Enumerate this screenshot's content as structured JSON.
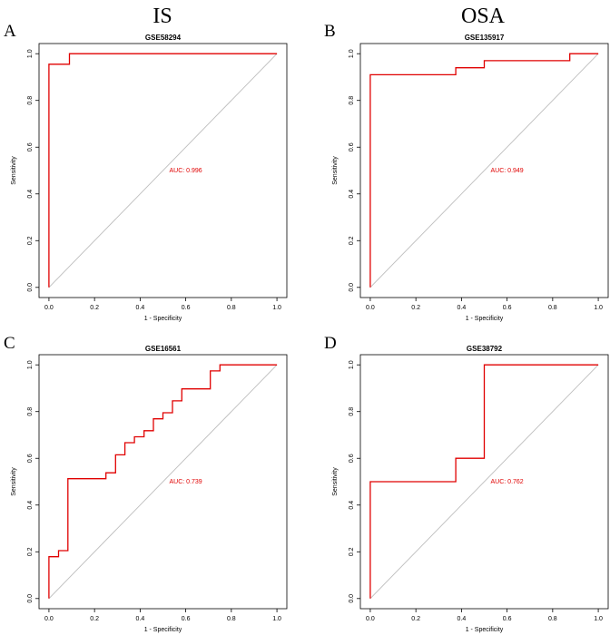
{
  "column_headers": [
    "IS",
    "OSA"
  ],
  "chart_data": [
    {
      "type": "line",
      "panel_label": "A",
      "title": "GSE58294",
      "xlabel": "1 - Specificity",
      "ylabel": "Sensitivity",
      "xlim": [
        0,
        1
      ],
      "ylim": [
        0,
        1
      ],
      "ticks": [
        "0.0",
        "0.2",
        "0.4",
        "0.6",
        "0.8",
        "1.0"
      ],
      "annotation": "AUC: 0.996",
      "colors": {
        "curve": "#e00000",
        "diagonal": "#bdbdbd",
        "axes": "#000000"
      },
      "x": [
        0,
        0,
        0.09,
        0.09,
        1
      ],
      "y": [
        0,
        0.955,
        0.955,
        1,
        1
      ]
    },
    {
      "type": "line",
      "panel_label": "B",
      "title": "GSE135917",
      "xlabel": "1 - Specificity",
      "ylabel": "Sensitivity",
      "xlim": [
        0,
        1
      ],
      "ylim": [
        0,
        1
      ],
      "ticks": [
        "0.0",
        "0.2",
        "0.4",
        "0.6",
        "0.8",
        "1.0"
      ],
      "annotation": "AUC: 0.949",
      "colors": {
        "curve": "#e00000",
        "diagonal": "#bdbdbd",
        "axes": "#000000"
      },
      "x": [
        0,
        0,
        0.375,
        0.375,
        0.5,
        0.5,
        0.875,
        0.875,
        1
      ],
      "y": [
        0,
        0.91,
        0.91,
        0.94,
        0.94,
        0.97,
        0.97,
        1,
        1
      ]
    },
    {
      "type": "line",
      "panel_label": "C",
      "title": "GSE16561",
      "xlabel": "1 - Specificity",
      "ylabel": "Sensitivity",
      "xlim": [
        0,
        1
      ],
      "ylim": [
        0,
        1
      ],
      "ticks": [
        "0.0",
        "0.2",
        "0.4",
        "0.6",
        "0.8",
        "1.0"
      ],
      "annotation": "AUC: 0.739",
      "colors": {
        "curve": "#e00000",
        "diagonal": "#bdbdbd",
        "axes": "#000000"
      },
      "x": [
        0,
        0,
        0.042,
        0.042,
        0.083,
        0.083,
        0.25,
        0.25,
        0.292,
        0.292,
        0.333,
        0.333,
        0.375,
        0.375,
        0.417,
        0.417,
        0.458,
        0.458,
        0.5,
        0.5,
        0.542,
        0.542,
        0.583,
        0.583,
        0.708,
        0.708,
        0.75,
        0.75,
        1
      ],
      "y": [
        0,
        0.179,
        0.179,
        0.205,
        0.205,
        0.513,
        0.513,
        0.538,
        0.538,
        0.615,
        0.615,
        0.667,
        0.667,
        0.692,
        0.692,
        0.718,
        0.718,
        0.769,
        0.769,
        0.795,
        0.795,
        0.846,
        0.846,
        0.897,
        0.897,
        0.974,
        0.974,
        1,
        1
      ]
    },
    {
      "type": "line",
      "panel_label": "D",
      "title": "GSE38792",
      "xlabel": "1 - Specificity",
      "ylabel": "Sensitivity",
      "xlim": [
        0,
        1
      ],
      "ylim": [
        0,
        1
      ],
      "ticks": [
        "0.0",
        "0.2",
        "0.4",
        "0.6",
        "0.8",
        "1.0"
      ],
      "annotation": "AUC: 0.762",
      "colors": {
        "curve": "#e00000",
        "diagonal": "#bdbdbd",
        "axes": "#000000"
      },
      "x": [
        0,
        0,
        0.375,
        0.375,
        0.5,
        0.5,
        1
      ],
      "y": [
        0,
        0.5,
        0.5,
        0.6,
        0.6,
        1,
        1
      ]
    }
  ]
}
